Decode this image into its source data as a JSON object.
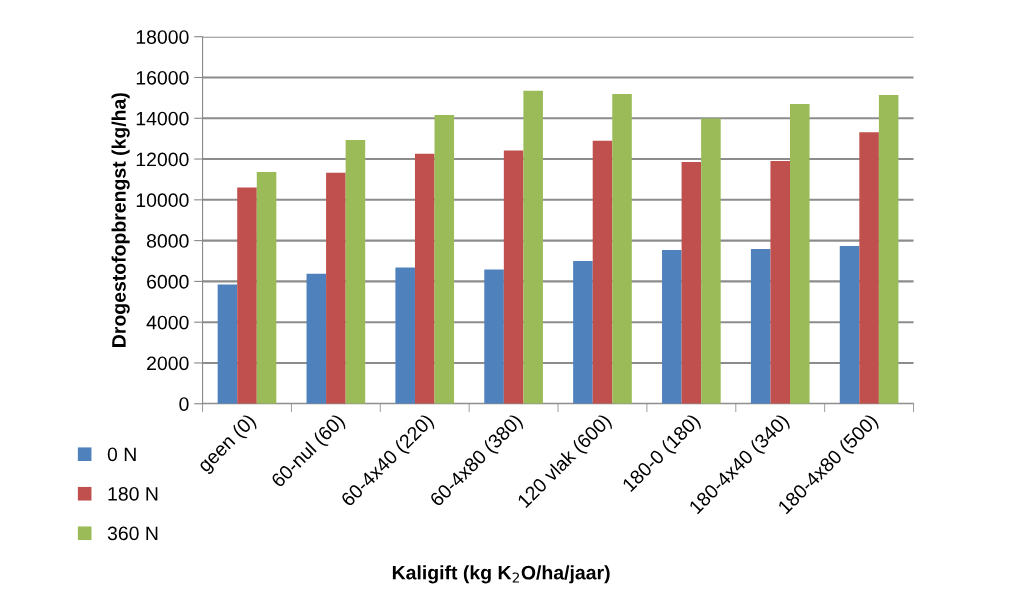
{
  "chart_data": {
    "type": "bar",
    "categories": [
      "geen (0)",
      "60-nul (60)",
      "60-4x40 (220)",
      "60-4x80 (380)",
      "120 vlak (600)",
      "180-0 (180)",
      "180-4x40 (340)",
      "180-4x80 (500)"
    ],
    "series": [
      {
        "name": "0 N",
        "color": "#4f81bd",
        "values": [
          5850,
          6380,
          6680,
          6580,
          7000,
          7540,
          7590,
          7740
        ]
      },
      {
        "name": "180 N",
        "color": "#c0504d",
        "values": [
          10600,
          11330,
          12260,
          12420,
          12900,
          11850,
          11900,
          13320
        ]
      },
      {
        "name": "360 N",
        "color": "#9bbb59",
        "values": [
          11360,
          12930,
          14160,
          15350,
          15190,
          13990,
          14700,
          15140
        ]
      }
    ],
    "xlabel": "Kaligift (kg K$_{2}$O/ha/jaar)",
    "ylabel": "Drogestofopbrengst (kg/ha)",
    "ylim": [
      0,
      18000
    ],
    "yticks": [
      0,
      2000,
      4000,
      6000,
      8000,
      10000,
      12000,
      14000,
      16000,
      18000
    ],
    "grid": "y",
    "legend": "bottom left"
  }
}
